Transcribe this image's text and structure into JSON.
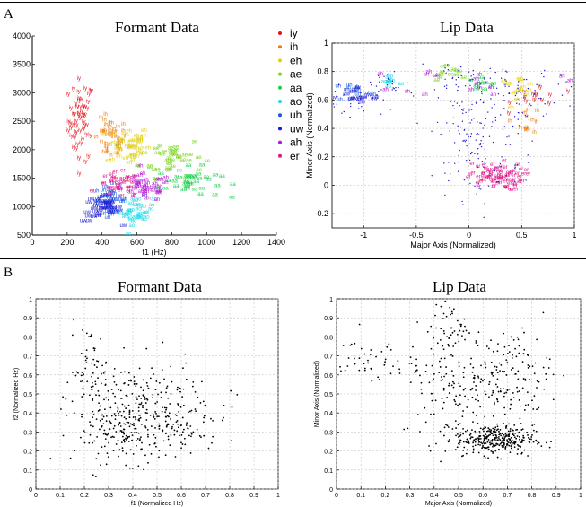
{
  "panel_labels": {
    "a": "A",
    "b": "B"
  },
  "legend": [
    {
      "label": "iy",
      "color": "#e8141c"
    },
    {
      "label": "ih",
      "color": "#f07c10"
    },
    {
      "label": "eh",
      "color": "#e2d21a"
    },
    {
      "label": "ae",
      "color": "#7ad41e"
    },
    {
      "label": "aa",
      "color": "#20cf50"
    },
    {
      "label": "ao",
      "color": "#1ed8e6"
    },
    {
      "label": "uh",
      "color": "#1a56e6"
    },
    {
      "label": "uw",
      "color": "#1a1ad0"
    },
    {
      "label": "ah",
      "color": "#b81ad8"
    },
    {
      "label": "er",
      "color": "#e0188a"
    }
  ],
  "chart_data": [
    {
      "id": "a-formant",
      "type": "scatter",
      "title": "Formant Data",
      "xlabel": "f1 (Hz)",
      "ylabel": "",
      "xlim": [
        0,
        1400
      ],
      "ylim": [
        500,
        4000
      ],
      "xticks": [
        "0",
        "200",
        "400",
        "600",
        "800",
        "1000",
        "1200",
        "1400"
      ],
      "yticks": [
        "500",
        "1000",
        "1500",
        "2000",
        "2500",
        "3000",
        "3500",
        "4000"
      ],
      "ytick_labels_shown": [
        "500",
        "1000",
        "1500",
        "2000",
        "2500",
        "3000",
        "3500",
        "4000"
      ],
      "grid": false,
      "markers": "text labels (vowel names)",
      "series": [
        {
          "name": "iy",
          "color": "#e8141c",
          "center": [
            280,
            2500
          ],
          "spread": [
            60,
            600
          ],
          "n": 55
        },
        {
          "name": "ih",
          "color": "#f07c10",
          "center": [
            450,
            2150
          ],
          "spread": [
            80,
            300
          ],
          "n": 45
        },
        {
          "name": "eh",
          "color": "#e2d21a",
          "center": [
            550,
            2050
          ],
          "spread": [
            100,
            300
          ],
          "n": 45
        },
        {
          "name": "ae",
          "color": "#7ad41e",
          "center": [
            800,
            1850
          ],
          "spread": [
            150,
            300
          ],
          "n": 45
        },
        {
          "name": "aa",
          "color": "#20cf50",
          "center": [
            900,
            1400
          ],
          "spread": [
            150,
            220
          ],
          "n": 40
        },
        {
          "name": "ao",
          "color": "#1ed8e6",
          "center": [
            600,
            900
          ],
          "spread": [
            80,
            200
          ],
          "n": 40
        },
        {
          "name": "uh",
          "color": "#1a56e6",
          "center": [
            450,
            1100
          ],
          "spread": [
            80,
            200
          ],
          "n": 40
        },
        {
          "name": "uw",
          "color": "#1a1ad0",
          "center": [
            400,
            950
          ],
          "spread": [
            90,
            200
          ],
          "n": 45
        },
        {
          "name": "ah",
          "color": "#b81ad8",
          "center": [
            650,
            1300
          ],
          "spread": [
            120,
            200
          ],
          "n": 45
        },
        {
          "name": "er",
          "color": "#e0188a",
          "center": [
            500,
            1350
          ],
          "spread": [
            100,
            180
          ],
          "n": 40
        }
      ]
    },
    {
      "id": "a-lip",
      "type": "scatter",
      "title": "Lip Data",
      "xlabel": "Major Axis (Normalized)",
      "ylabel": "Minor Axis (Normalized)",
      "xlim": [
        -1.3,
        1.0
      ],
      "ylim": [
        -0.3,
        1.0
      ],
      "xticks": [
        "-1",
        "-0.5",
        "0",
        "0.5",
        "1"
      ],
      "yticks": [
        "-0.2",
        "0",
        "0.2",
        "0.4",
        "0.6",
        "0.8",
        "1"
      ],
      "grid": true,
      "markers": "text labels (vowel names) and dots",
      "series": [
        {
          "name": "iy",
          "color": "#e8141c",
          "center": [
            0.65,
            0.62
          ],
          "spread": [
            0.2,
            0.08
          ],
          "n": 14
        },
        {
          "name": "ih",
          "color": "#f07c10",
          "center": [
            0.55,
            0.45
          ],
          "spread": [
            0.12,
            0.08
          ],
          "n": 14
        },
        {
          "name": "eh",
          "color": "#e2d21a",
          "center": [
            0.45,
            0.68
          ],
          "spread": [
            0.15,
            0.06
          ],
          "n": 16
        },
        {
          "name": "ae",
          "color": "#7ad41e",
          "center": [
            -0.2,
            0.78
          ],
          "spread": [
            0.15,
            0.05
          ],
          "n": 12
        },
        {
          "name": "aa",
          "color": "#20cf50",
          "center": [
            0.1,
            0.7
          ],
          "spread": [
            0.15,
            0.05
          ],
          "n": 10
        },
        {
          "name": "ao",
          "color": "#1ed8e6",
          "center": [
            -0.75,
            0.72
          ],
          "spread": [
            0.1,
            0.06
          ],
          "n": 10
        },
        {
          "name": "uh",
          "color": "#1a56e6",
          "center": [
            -1.1,
            0.65
          ],
          "spread": [
            0.15,
            0.06
          ],
          "n": 14
        },
        {
          "name": "uw",
          "color": "#1a1ad0",
          "center": [
            -1.05,
            0.6
          ],
          "spread": [
            0.2,
            0.07
          ],
          "n": 16
        },
        {
          "name": "ah",
          "color": "#b81ad8",
          "center": [
            0.1,
            0.72
          ],
          "spread": [
            0.6,
            0.08
          ],
          "n": 16
        },
        {
          "name": "er",
          "color": "#e0188a",
          "center": [
            0.25,
            0.05
          ],
          "spread": [
            0.22,
            0.08
          ],
          "n": 80
        }
      ]
    },
    {
      "id": "b-formant",
      "type": "scatter",
      "title": "Formant Data",
      "xlabel": "f1 (Normalized Hz)",
      "ylabel": "f2 (Normalized Hz)",
      "xlim": [
        0,
        1
      ],
      "ylim": [
        0,
        1
      ],
      "xticks": [
        "0",
        "0.1",
        "0.2",
        "0.3",
        "0.4",
        "0.5",
        "0.6",
        "0.7",
        "0.8",
        "0.9",
        "1"
      ],
      "yticks": [
        "0",
        "0.1",
        "0.2",
        "0.3",
        "0.4",
        "0.5",
        "0.6",
        "0.7",
        "0.8",
        "0.9",
        "1"
      ],
      "grid": true,
      "markers": "black dots",
      "clusters": [
        {
          "center": [
            0.22,
            0.62
          ],
          "spread": [
            0.04,
            0.12
          ],
          "n": 60
        },
        {
          "center": [
            0.4,
            0.3
          ],
          "spread": [
            0.12,
            0.08
          ],
          "n": 220
        },
        {
          "center": [
            0.42,
            0.48
          ],
          "spread": [
            0.12,
            0.1
          ],
          "n": 140
        },
        {
          "center": [
            0.62,
            0.4
          ],
          "spread": [
            0.1,
            0.08
          ],
          "n": 60
        }
      ]
    },
    {
      "id": "b-lip",
      "type": "scatter",
      "title": "Lip Data",
      "xlabel": "Major Axis (Normalized)",
      "ylabel": "Minor Axis (Normalized)",
      "xlim": [
        0,
        1
      ],
      "ylim": [
        0,
        1
      ],
      "xticks": [
        "0",
        "0.1",
        "0.2",
        "0.3",
        "0.4",
        "0.5",
        "0.6",
        "0.7",
        "0.8",
        "0.9",
        "1"
      ],
      "yticks": [
        "0",
        "0.1",
        "0.2",
        "0.3",
        "0.4",
        "0.5",
        "0.6",
        "0.7",
        "0.8",
        "0.9",
        "1"
      ],
      "grid": true,
      "markers": "black dots",
      "clusters": [
        {
          "center": [
            0.65,
            0.26
          ],
          "spread": [
            0.08,
            0.04
          ],
          "n": 320
        },
        {
          "center": [
            0.5,
            0.55
          ],
          "spread": [
            0.12,
            0.15
          ],
          "n": 160
        },
        {
          "center": [
            0.72,
            0.6
          ],
          "spread": [
            0.08,
            0.12
          ],
          "n": 120
        },
        {
          "center": [
            0.12,
            0.68
          ],
          "spread": [
            0.1,
            0.05
          ],
          "n": 50
        },
        {
          "center": [
            0.47,
            0.85
          ],
          "spread": [
            0.04,
            0.06
          ],
          "n": 40
        }
      ]
    }
  ]
}
